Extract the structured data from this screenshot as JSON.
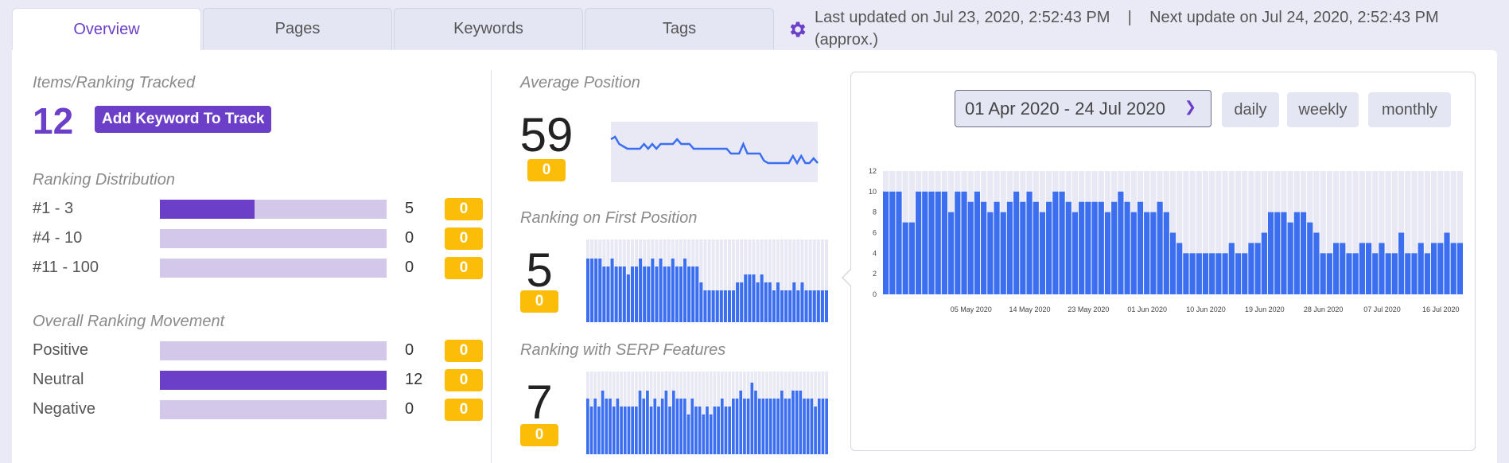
{
  "tabs": [
    {
      "label": "Overview"
    },
    {
      "label": "Pages"
    },
    {
      "label": "Keywords"
    },
    {
      "label": "Tags"
    }
  ],
  "update_info": {
    "last_updated": "Last updated on Jul 23, 2020, 2:52:43 PM",
    "separator": "|",
    "next_update": "Next update on Jul 24, 2020, 2:52:43 PM (approx.)",
    "icon": "gear-icon"
  },
  "tracked": {
    "title": "Items/Ranking Tracked",
    "count": "12",
    "add_button": "Add Keyword To Track"
  },
  "distribution": {
    "title": "Ranking Distribution",
    "rows": [
      {
        "label": "#1 - 3",
        "value": "5",
        "fraction": 0.4167,
        "badge": "0"
      },
      {
        "label": "#4 - 10",
        "value": "0",
        "fraction": 0,
        "badge": "0"
      },
      {
        "label": "#11 - 100",
        "value": "0",
        "fraction": 0,
        "badge": "0"
      }
    ]
  },
  "movement": {
    "title": "Overall Ranking Movement",
    "rows": [
      {
        "label": "Positive",
        "value": "0",
        "fraction": 0,
        "badge": "0"
      },
      {
        "label": "Neutral",
        "value": "12",
        "fraction": 1,
        "badge": "0"
      },
      {
        "label": "Negative",
        "value": "0",
        "fraction": 0,
        "badge": "0"
      }
    ]
  },
  "metrics": {
    "avg_position": {
      "title": "Average Position",
      "value": "59",
      "badge": "0"
    },
    "first_position": {
      "title": "Ranking on First Position",
      "value": "5",
      "badge": "0"
    },
    "serp_features": {
      "title": "Ranking with SERP Features",
      "value": "7",
      "badge": "0"
    }
  },
  "date_controls": {
    "range": "01 Apr 2020 - 24 Jul 2020",
    "buttons": [
      "daily",
      "weekly",
      "monthly"
    ]
  },
  "colors": {
    "accent": "#6b3fc7",
    "bar_blue": "#3b6ff0",
    "badge_yellow": "#fbbd08",
    "track_light": "#d3c7ea"
  },
  "chart_data": [
    {
      "type": "line",
      "name": "avg-position-sparkline",
      "values": [
        56,
        55,
        58,
        59,
        60,
        60,
        60,
        60,
        58,
        60,
        58,
        60,
        58,
        58,
        58,
        58,
        56,
        58,
        58,
        58,
        60,
        60,
        60,
        60,
        60,
        60,
        60,
        60,
        60,
        62,
        62,
        62,
        58,
        62,
        62,
        62,
        62,
        65,
        66,
        66,
        66,
        66,
        66,
        66,
        63,
        66,
        63,
        66,
        66,
        64,
        66
      ]
    },
    {
      "type": "bar",
      "name": "first-position-sparkline",
      "values": [
        8,
        8,
        8,
        8,
        7,
        7,
        8,
        7,
        7,
        7,
        6,
        7,
        7,
        8,
        7,
        7,
        8,
        7,
        8,
        7,
        7,
        8,
        7,
        7,
        8,
        7,
        7,
        7,
        5,
        4,
        4,
        4,
        4,
        4,
        4,
        4,
        4,
        5,
        5,
        6,
        6,
        6,
        5,
        6,
        5,
        5,
        4,
        5,
        4,
        4,
        4,
        5,
        4,
        5,
        4,
        4,
        4,
        4,
        4,
        4
      ],
      "ylim": [
        0,
        10
      ]
    },
    {
      "type": "bar",
      "name": "serp-features-sparkline",
      "values": [
        7,
        6,
        7,
        6,
        8,
        7,
        7,
        6,
        7,
        6,
        6,
        6,
        6,
        6,
        8,
        7,
        8,
        6,
        7,
        6,
        7,
        8,
        6,
        8,
        7,
        7,
        7,
        5,
        7,
        6,
        6,
        5,
        6,
        5,
        6,
        6,
        7,
        6,
        6,
        7,
        7,
        8,
        7,
        7,
        9,
        8,
        7,
        7,
        7,
        7,
        7,
        7,
        8,
        7,
        7,
        8,
        8,
        8,
        7,
        7,
        7,
        6,
        7,
        7,
        7
      ],
      "ylim": [
        0,
        10
      ]
    },
    {
      "type": "bar",
      "name": "main-chart",
      "ylim": [
        0,
        12
      ],
      "yticks": [
        0,
        2,
        4,
        6,
        8,
        10,
        12
      ],
      "xtick_labels": [
        "05 May 2020",
        "14 May 2020",
        "23 May 2020",
        "01 Jun 2020",
        "10 Jun 2020",
        "19 Jun 2020",
        "28 Jun 2020",
        "07 Jul 2020",
        "16 Jul 2020"
      ],
      "values": [
        10,
        10,
        10,
        7,
        7,
        10,
        10,
        10,
        10,
        10,
        8,
        10,
        10,
        9,
        10,
        9,
        8,
        9,
        8,
        9,
        10,
        9,
        10,
        9,
        8,
        9,
        10,
        10,
        9,
        8,
        9,
        9,
        9,
        9,
        8,
        9,
        10,
        9,
        8,
        9,
        8,
        8,
        9,
        8,
        6,
        5,
        4,
        4,
        4,
        4,
        4,
        4,
        4,
        5,
        4,
        4,
        5,
        5,
        6,
        8,
        8,
        8,
        7,
        8,
        8,
        7,
        6,
        4,
        4,
        5,
        5,
        4,
        4,
        5,
        5,
        4,
        5,
        4,
        4,
        6,
        4,
        4,
        5,
        4,
        5,
        5,
        6,
        5,
        5
      ]
    }
  ]
}
